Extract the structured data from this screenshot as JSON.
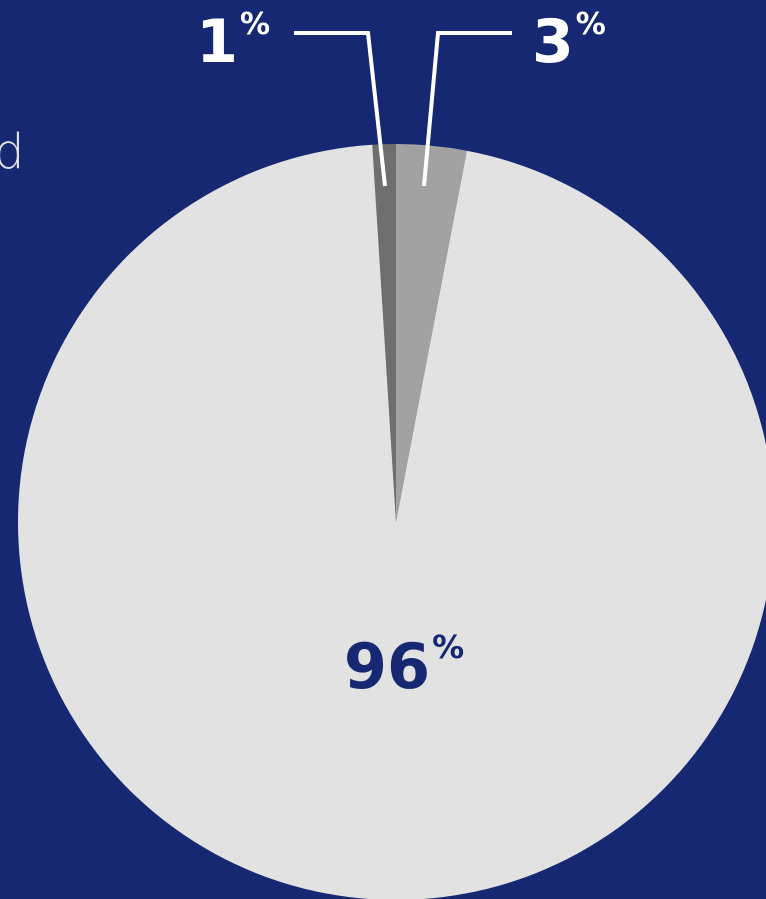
{
  "left_text": "d",
  "chart_data": {
    "type": "pie",
    "title": "",
    "start_angle_deg": -3.6,
    "direction": "clockwise",
    "slices": [
      {
        "value": 1,
        "label": "1",
        "suffix": "%",
        "color": "#6e6e6e",
        "label_color": "#ffffff",
        "leader": true
      },
      {
        "value": 3,
        "label": "3",
        "suffix": "%",
        "color": "#a2a2a2",
        "label_color": "#ffffff",
        "leader": true
      },
      {
        "value": 96,
        "label": "96",
        "suffix": "%",
        "color": "#e2e2e2",
        "label_color": "#172873",
        "leader": false
      }
    ]
  },
  "colors": {
    "background": "#172873",
    "leader_line": "#ffffff"
  }
}
